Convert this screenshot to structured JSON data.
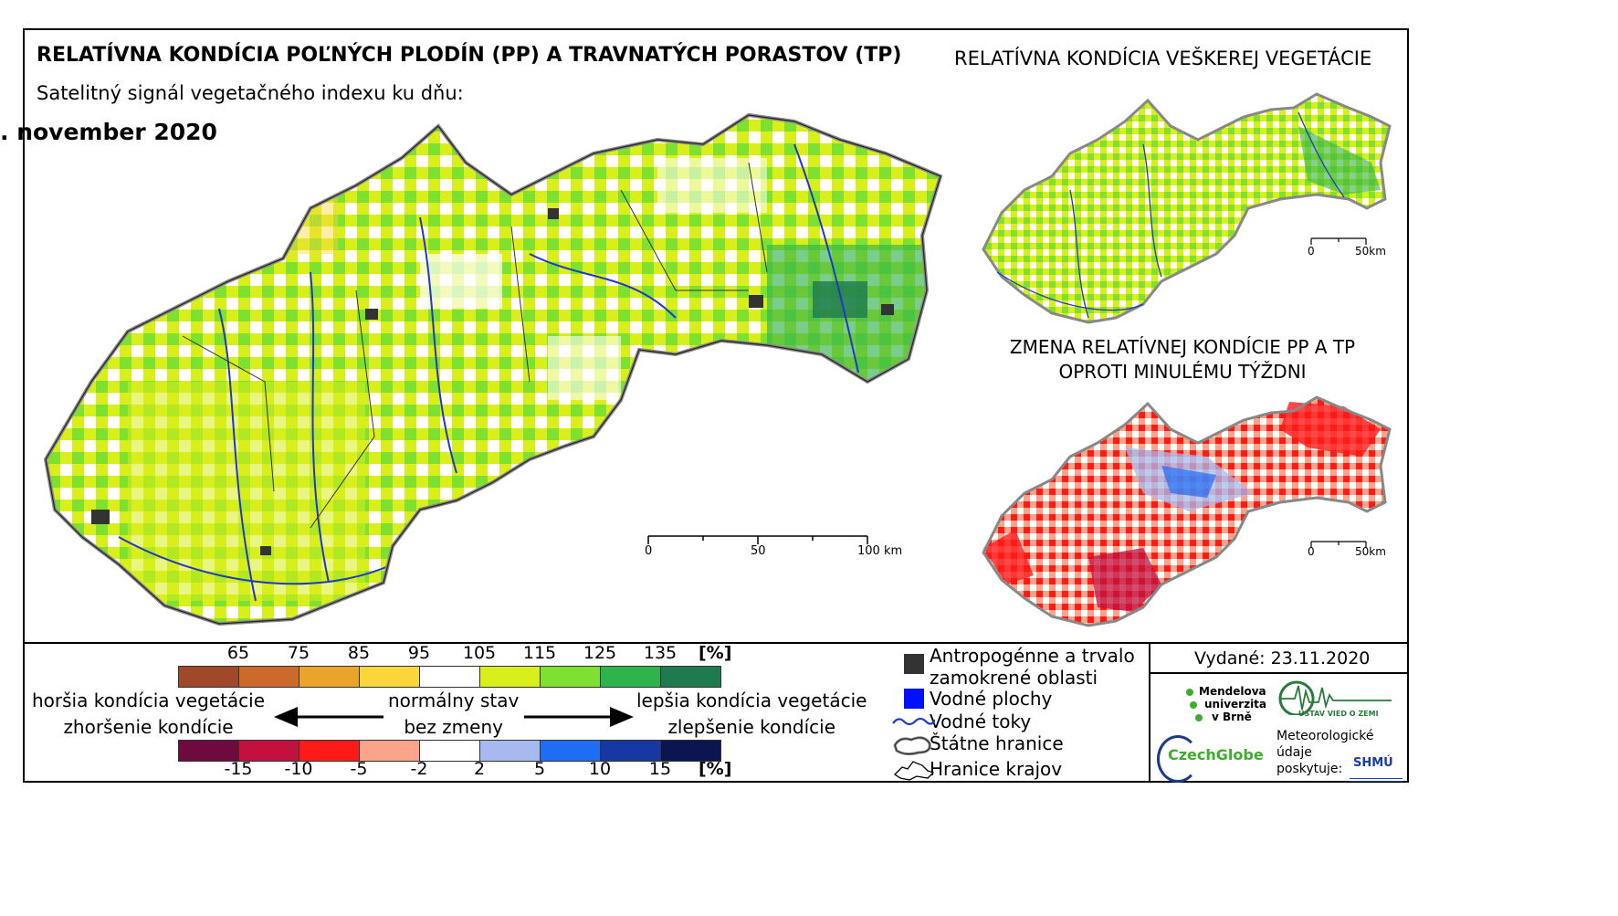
{
  "title": "RELATÍVNA KONDÍCIA POĽNÝCH PLODÍN (PP) A TRAVNATÝCH PORASTOV (TP)",
  "subtitle": "Satelitný signál vegetačného indexu ku dňu:",
  "date": ". november 2020",
  "right_title": "RELATÍVNA KONDÍCIA VEŠKEREJ VEGETÁCIE",
  "change_title_line1": "ZMENA RELATÍVNEJ KONDÍCIE PP A TP",
  "change_title_line2": "OPROTI MINULÉMU TÝŽDNI",
  "main_scale": {
    "labels": [
      "0",
      "50",
      "100 km"
    ]
  },
  "small_scale": {
    "labels": [
      "0",
      "50km"
    ]
  },
  "condition_legend": {
    "ticks": [
      "65",
      "75",
      "85",
      "95",
      "105",
      "115",
      "125",
      "135"
    ],
    "unit": "[%]",
    "colors": [
      "#a0492a",
      "#cc6a2c",
      "#eaa42a",
      "#fbd63a",
      "#ffffff",
      "#d8ef1c",
      "#7fe12f",
      "#2fb34c",
      "#1e7a4f"
    ]
  },
  "change_legend": {
    "ticks": [
      "-15",
      "-10",
      "-5",
      "-2",
      "2",
      "5",
      "10",
      "15"
    ],
    "unit": "[%]",
    "colors": [
      "#6e0a3d",
      "#c2103f",
      "#ff1a1a",
      "#fca48a",
      "#ffffff",
      "#a7baef",
      "#1f6cf5",
      "#1538a2",
      "#0a1552"
    ]
  },
  "legend_text": {
    "worse_condition": "horšia kondícia vegetácie",
    "worsening": "zhoršenie kondície",
    "normal_state": "normálny stav",
    "no_change": "bez zmeny",
    "better_condition": "lepšia kondícia vegetácie",
    "improvement": "zlepšenie kondície"
  },
  "symbol_legend": {
    "anthropogenic_line1": "Antropogénne a trvalo",
    "anthropogenic_line2": "zamokrené oblasti",
    "water_areas": "Vodné plochy",
    "rivers": "Vodné toky",
    "state_border": "Štátne hranice",
    "region_border": "Hranice krajov"
  },
  "issued": "Vydané: 23.11.2020",
  "logos": {
    "mendel_line1": "Mendelova",
    "mendel_line2": "univerzita",
    "mendel_line3": "v Brně",
    "czechglobe": "CzechGlobe",
    "institute": "ÚSTAV VIED O ZEMI",
    "met_line1": "Meteorologické",
    "met_line2": "údaje",
    "met_line3": "poskytuje:",
    "shmu": "SHMÚ"
  }
}
